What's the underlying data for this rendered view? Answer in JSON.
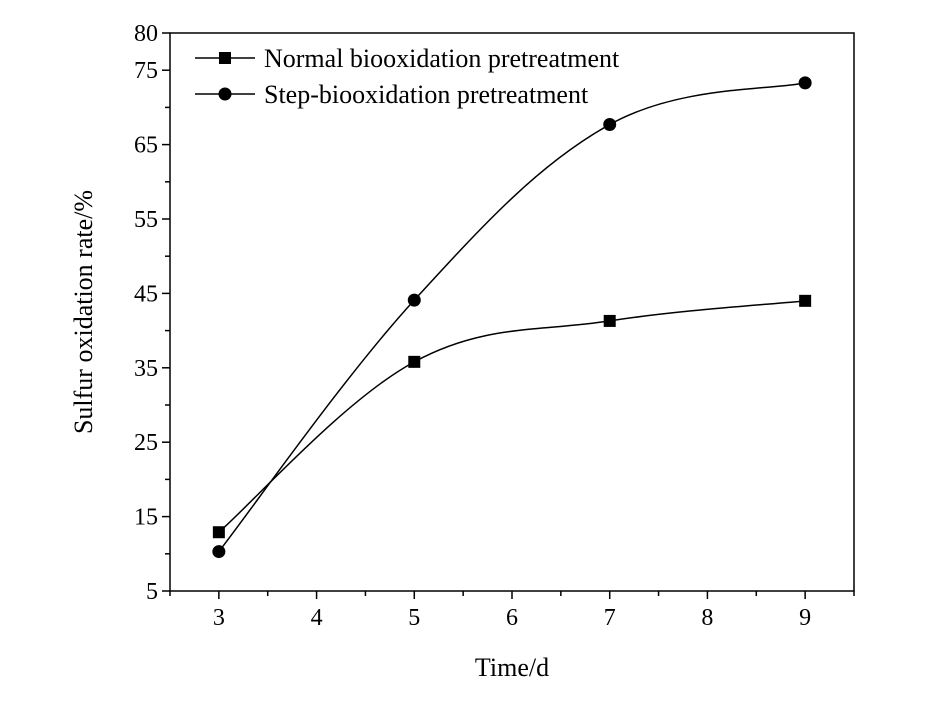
{
  "chart_data": {
    "type": "line",
    "title": "",
    "xlabel": "Time/d",
    "ylabel": "Sulfur oxidation rate/%",
    "xlim": [
      2.5,
      9.5
    ],
    "ylim": [
      5,
      80
    ],
    "x_ticks": [
      3,
      4,
      5,
      6,
      7,
      8,
      9
    ],
    "y_ticks": [
      5,
      15,
      25,
      35,
      45,
      55,
      65,
      75,
      80
    ],
    "x_tick_labels": [
      "3",
      "4",
      "5",
      "6",
      "7",
      "8",
      "9"
    ],
    "y_tick_labels": [
      "5",
      "15",
      "25",
      "35",
      "45",
      "55",
      "65",
      "75",
      "80"
    ],
    "grid": false,
    "legend_position": "top-left",
    "series": [
      {
        "name": "Normal biooxidation pretreatment",
        "marker": "square",
        "x": [
          3,
          5,
          7,
          9
        ],
        "values": [
          12.9,
          35.8,
          41.3,
          44.0
        ]
      },
      {
        "name": "Step-biooxidation pretreatment",
        "marker": "circle",
        "x": [
          3,
          5,
          7,
          9
        ],
        "values": [
          10.3,
          44.1,
          67.7,
          73.3
        ]
      }
    ],
    "line_color": "#000000",
    "marker_color": "#000000"
  }
}
